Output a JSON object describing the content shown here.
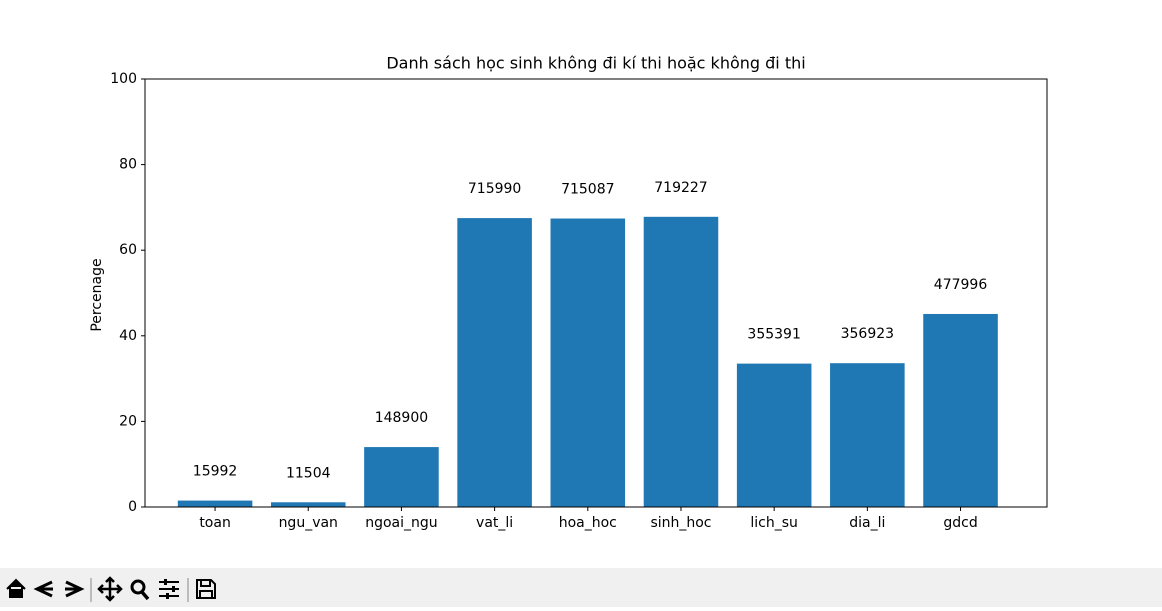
{
  "chart_data": {
    "type": "bar",
    "title": "Danh sách học sinh không đi kí thi hoặc không đi thi",
    "ylabel": "Percenage",
    "categories": [
      "toan",
      "ngu_van",
      "ngoai_ngu",
      "vat_li",
      "hoa_hoc",
      "sinh_hoc",
      "lich_su",
      "dia_li",
      "gdcd"
    ],
    "values": [
      1.5,
      1.1,
      14.0,
      67.5,
      67.4,
      67.8,
      33.5,
      33.6,
      45.1
    ],
    "bar_labels": [
      15992,
      11504,
      148900,
      715990,
      715087,
      719227,
      355391,
      356923,
      477996
    ],
    "color": "#1f77b4",
    "ylim": [
      0,
      100
    ],
    "yticks": [
      0,
      20,
      40,
      60,
      80,
      100
    ],
    "grid": false
  }
}
